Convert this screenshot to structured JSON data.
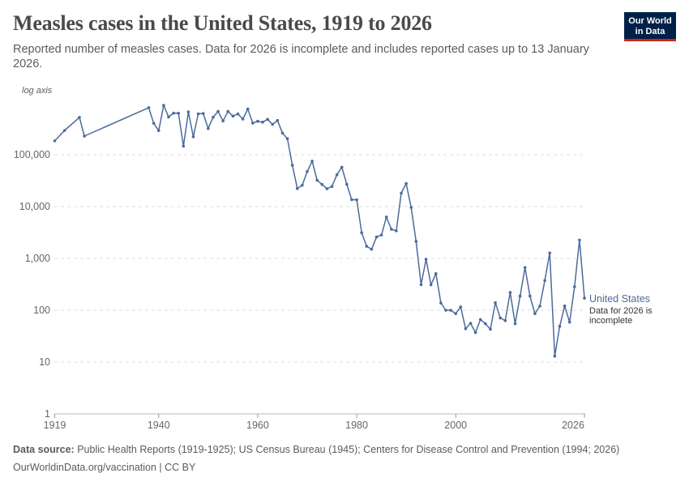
{
  "header": {
    "title": "Measles cases in the United States, 1919 to 2026",
    "subtitle": "Reported number of measles cases. Data for 2026 is incomplete and includes reported cases up to 13 January 2026.",
    "logo_line1": "Our World",
    "logo_line2": "in Data"
  },
  "footer": {
    "source_label": "Data source:",
    "source_text": " Public Health Reports (1919-1925); US Census Bureau (1945); Centers for Disease Control and Prevention (1994; 2026)",
    "url_license": "OurWorldinData.org/vaccination | CC BY"
  },
  "chart_data": {
    "type": "line",
    "title": "Measles cases in the United States, 1919 to 2026",
    "axis_note": "log axis",
    "yscale": "log",
    "ylim": [
      1,
      1000000
    ],
    "xlim": [
      1919,
      2026
    ],
    "y_ticks": [
      {
        "v": 1,
        "label": "1"
      },
      {
        "v": 10,
        "label": "10"
      },
      {
        "v": 100,
        "label": "100"
      },
      {
        "v": 1000,
        "label": "1,000"
      },
      {
        "v": 10000,
        "label": "10,000"
      },
      {
        "v": 100000,
        "label": "100,000"
      }
    ],
    "x_ticks": [
      1919,
      1940,
      1960,
      1980,
      2000,
      2026
    ],
    "grid": "horizontal dashed",
    "color": "#4c6a9c",
    "series": [
      {
        "name": "United States",
        "annotation": "Data for 2026 is incomplete",
        "x": [
          1919,
          1921,
          1924,
          1925,
          1938,
          1939,
          1940,
          1941,
          1942,
          1943,
          1944,
          1945,
          1946,
          1947,
          1948,
          1949,
          1950,
          1951,
          1952,
          1953,
          1954,
          1955,
          1956,
          1957,
          1958,
          1959,
          1960,
          1961,
          1962,
          1963,
          1964,
          1965,
          1966,
          1967,
          1968,
          1969,
          1970,
          1971,
          1972,
          1973,
          1974,
          1975,
          1976,
          1977,
          1978,
          1979,
          1980,
          1981,
          1982,
          1983,
          1984,
          1985,
          1986,
          1987,
          1988,
          1989,
          1990,
          1991,
          1992,
          1993,
          1994,
          1995,
          1996,
          1997,
          1998,
          1999,
          2000,
          2001,
          2002,
          2003,
          2004,
          2005,
          2006,
          2007,
          2008,
          2009,
          2010,
          2011,
          2012,
          2013,
          2014,
          2015,
          2016,
          2017,
          2018,
          2019,
          2020,
          2021,
          2022,
          2023,
          2024,
          2025,
          2026
        ],
        "y": [
          185000,
          294000,
          525000,
          229000,
          808908,
          403317,
          291162,
          894134,
          534000,
          633000,
          630000,
          146013,
          670000,
          222375,
          615000,
          625000,
          319124,
          530118,
          683077,
          449146,
          682720,
          555156,
          611936,
          486799,
          763094,
          406162,
          441703,
          423919,
          481530,
          385156,
          458083,
          261904,
          204136,
          62705,
          22231,
          25826,
          47351,
          75290,
          32275,
          26690,
          22094,
          24374,
          41126,
          57345,
          26871,
          13597,
          13506,
          3124,
          1714,
          1497,
          2587,
          2822,
          6282,
          3655,
          3396,
          18193,
          27786,
          9643,
          2126,
          312,
          963,
          309,
          508,
          138,
          100,
          100,
          86,
          116,
          44,
          56,
          37,
          66,
          55,
          43,
          140,
          71,
          63,
          220,
          55,
          187,
          667,
          188,
          86,
          120,
          375,
          1274,
          13,
          49,
          121,
          59,
          285,
          2255,
          171
        ]
      }
    ]
  }
}
